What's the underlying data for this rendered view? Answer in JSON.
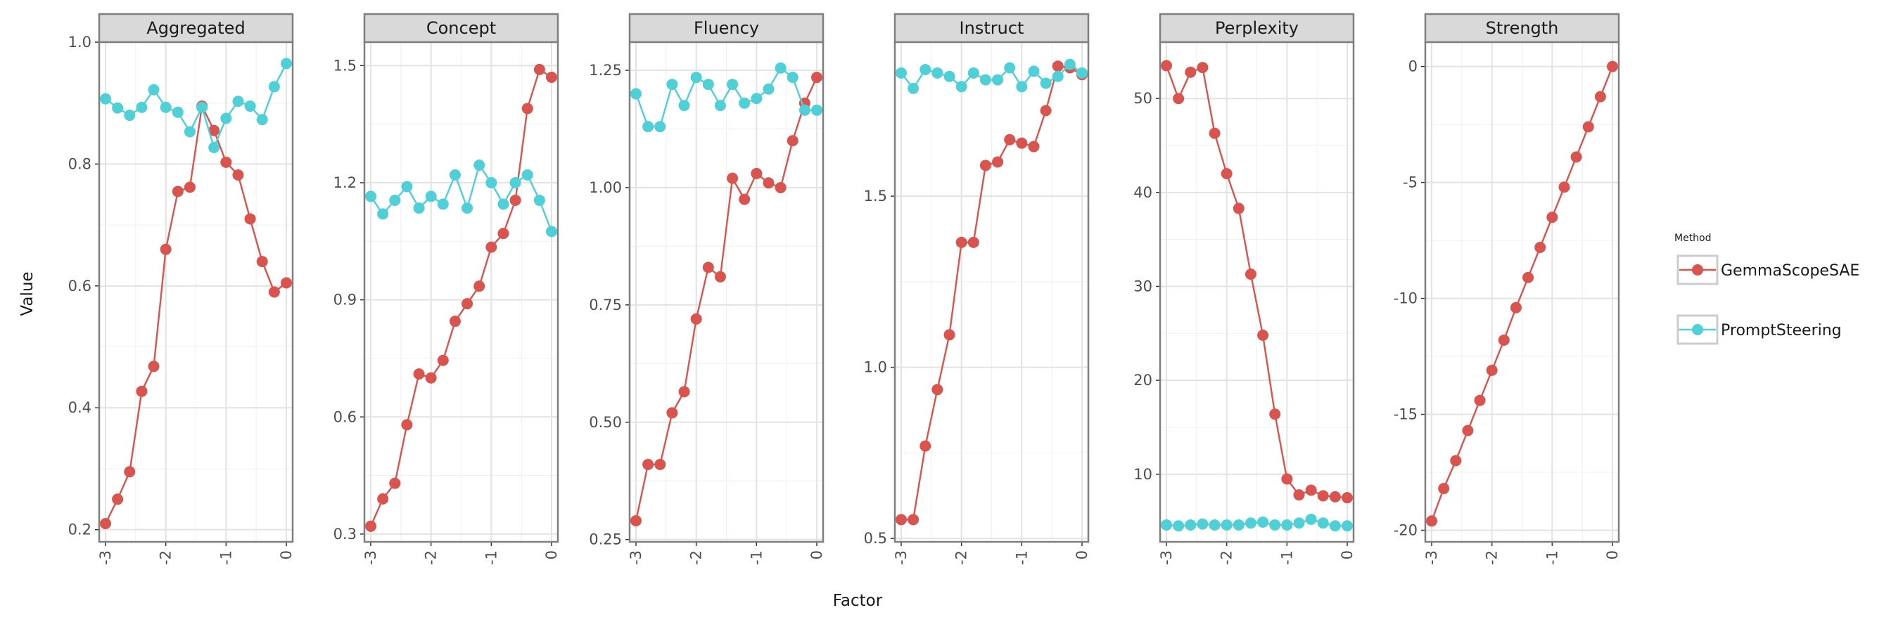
{
  "chart_data": {
    "type": "line",
    "xlabel": "Factor",
    "ylabel": "Value",
    "legend": {
      "title": "Method",
      "placement": "right"
    },
    "grid": true,
    "x": [
      -3.0,
      -2.8,
      -2.6,
      -2.4,
      -2.2,
      -2.0,
      -1.8,
      -1.6,
      -1.4,
      -1.2,
      -1.0,
      -0.8,
      -0.6,
      -0.4,
      -0.2,
      0.0
    ],
    "x_ticks": [
      -3,
      -2,
      -1,
      0
    ],
    "x_tick_labels": [
      "-3",
      "-2",
      "-1",
      "0"
    ],
    "xlim": [
      -3.0,
      0.0
    ],
    "series_meta": [
      {
        "name": "GemmaScopeSAE",
        "color": "#d9534f"
      },
      {
        "name": "PromptSteering",
        "color": "#4fd0d6"
      }
    ],
    "panels": [
      {
        "title": "Aggregated",
        "ylim": [
          0.18,
          1.0
        ],
        "y_ticks": [
          0.2,
          0.4,
          0.6,
          0.8,
          1.0
        ],
        "y_tick_labels": [
          "0.2",
          "0.4",
          "0.6",
          "0.8",
          "1.0"
        ],
        "series": [
          {
            "name": "GemmaScopeSAE",
            "values": [
              0.21,
              0.25,
              0.295,
              0.427,
              0.468,
              0.66,
              0.755,
              0.762,
              0.895,
              0.855,
              0.803,
              0.782,
              0.71,
              0.64,
              0.59,
              0.605
            ]
          },
          {
            "name": "PromptSteering",
            "values": [
              0.907,
              0.892,
              0.88,
              0.893,
              0.922,
              0.893,
              0.885,
              0.853,
              0.893,
              0.827,
              0.875,
              0.903,
              0.895,
              0.873,
              0.927,
              0.965
            ]
          }
        ]
      },
      {
        "title": "Concept",
        "ylim": [
          0.28,
          1.56
        ],
        "y_ticks": [
          0.3,
          0.6,
          0.9,
          1.2,
          1.5
        ],
        "y_tick_labels": [
          "0.3",
          "0.6",
          "0.9",
          "1.2",
          "1.5"
        ],
        "series": [
          {
            "name": "GemmaScopeSAE",
            "values": [
              0.32,
              0.39,
              0.43,
              0.58,
              0.71,
              0.7,
              0.745,
              0.845,
              0.89,
              0.935,
              1.035,
              1.07,
              1.155,
              1.39,
              1.49,
              1.47
            ]
          },
          {
            "name": "PromptSteering",
            "values": [
              1.165,
              1.12,
              1.155,
              1.19,
              1.135,
              1.165,
              1.145,
              1.22,
              1.135,
              1.245,
              1.2,
              1.145,
              1.2,
              1.22,
              1.155,
              1.075
            ]
          }
        ]
      },
      {
        "title": "Fluency",
        "ylim": [
          0.245,
          1.31
        ],
        "y_ticks": [
          0.25,
          0.5,
          0.75,
          1.0,
          1.25
        ],
        "y_tick_labels": [
          "0.25",
          "0.50",
          "0.75",
          "1.00",
          "1.25"
        ],
        "series": [
          {
            "name": "GemmaScopeSAE",
            "values": [
              0.29,
              0.41,
              0.41,
              0.52,
              0.565,
              0.72,
              0.83,
              0.81,
              1.02,
              0.975,
              1.03,
              1.01,
              1.0,
              1.1,
              1.18,
              1.235
            ]
          },
          {
            "name": "PromptSteering",
            "values": [
              1.2,
              1.13,
              1.13,
              1.22,
              1.175,
              1.235,
              1.22,
              1.175,
              1.22,
              1.18,
              1.19,
              1.21,
              1.255,
              1.235,
              1.165,
              1.165
            ]
          }
        ]
      },
      {
        "title": "Instruct",
        "ylim": [
          0.49,
          1.95
        ],
        "y_ticks": [
          0.5,
          1.0,
          1.5
        ],
        "y_tick_labels": [
          "0.5",
          "1.0",
          "1.5"
        ],
        "series": [
          {
            "name": "GemmaScopeSAE",
            "values": [
              0.555,
              0.555,
              0.77,
              0.935,
              1.095,
              1.365,
              1.365,
              1.59,
              1.6,
              1.665,
              1.655,
              1.645,
              1.75,
              1.88,
              1.875,
              1.855
            ]
          },
          {
            "name": "PromptSteering",
            "values": [
              1.86,
              1.815,
              1.87,
              1.86,
              1.85,
              1.82,
              1.86,
              1.84,
              1.84,
              1.875,
              1.82,
              1.865,
              1.83,
              1.85,
              1.885,
              1.86
            ]
          }
        ]
      },
      {
        "title": "Perplexity",
        "ylim": [
          2.8,
          56
        ],
        "y_ticks": [
          10,
          20,
          30,
          40,
          50
        ],
        "y_tick_labels": [
          "10",
          "20",
          "30",
          "40",
          "50"
        ],
        "series": [
          {
            "name": "GemmaScopeSAE",
            "values": [
              53.5,
              50.0,
              52.8,
              53.3,
              46.3,
              42.0,
              38.3,
              31.3,
              24.8,
              16.4,
              9.5,
              7.8,
              8.3,
              7.7,
              7.6,
              7.5
            ]
          },
          {
            "name": "PromptSteering",
            "values": [
              4.6,
              4.5,
              4.6,
              4.7,
              4.6,
              4.6,
              4.6,
              4.8,
              4.9,
              4.6,
              4.6,
              4.8,
              5.2,
              4.8,
              4.5,
              4.5
            ]
          }
        ]
      },
      {
        "title": "Strength",
        "ylim": [
          -20.5,
          1.05
        ],
        "y_ticks": [
          -20,
          -15,
          -10,
          -5,
          0
        ],
        "y_tick_labels": [
          "-20",
          "-15",
          "-10",
          "-5",
          "0"
        ],
        "series": [
          {
            "name": "GemmaScopeSAE",
            "values": [
              -19.6,
              -18.2,
              -17.0,
              -15.7,
              -14.4,
              -13.1,
              -11.8,
              -10.4,
              -9.1,
              -7.8,
              -6.5,
              -5.2,
              -3.9,
              -2.6,
              -1.3,
              0.0
            ]
          }
        ]
      }
    ]
  }
}
